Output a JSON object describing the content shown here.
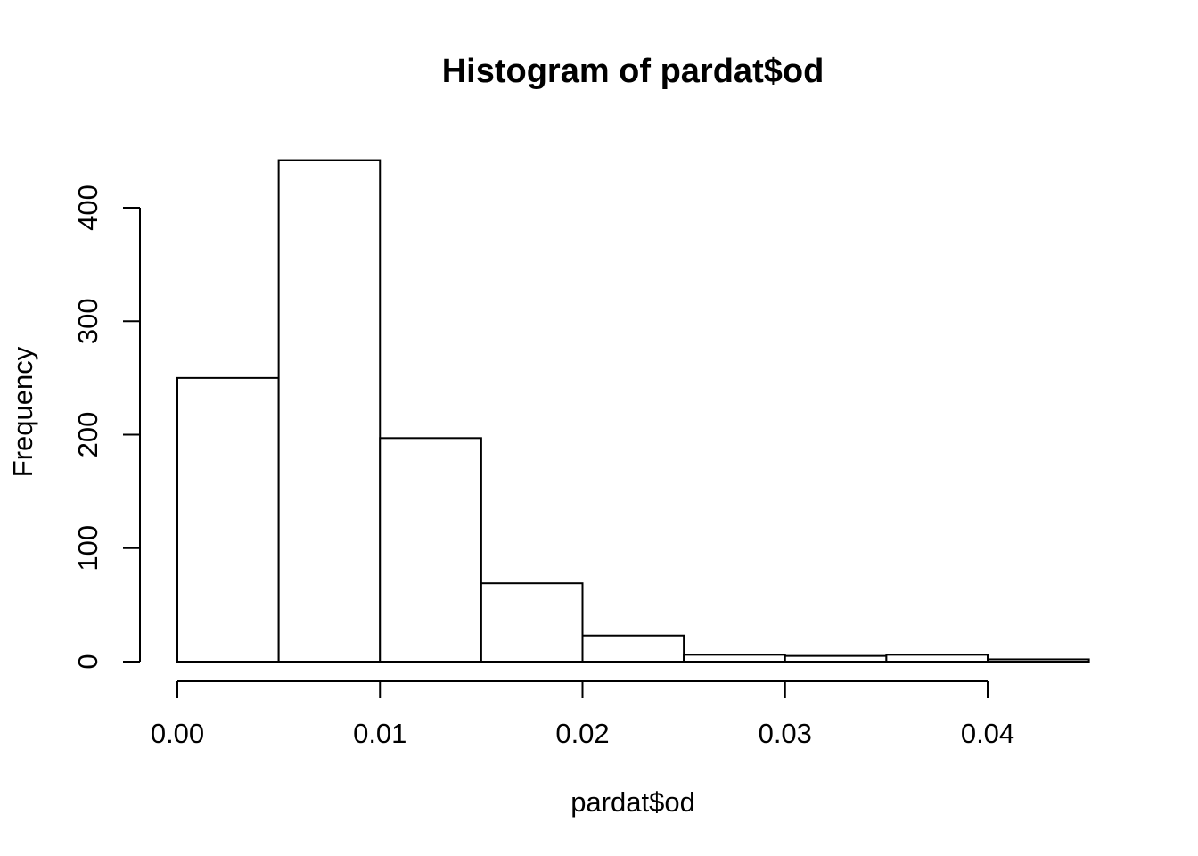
{
  "chart_data": {
    "type": "bar",
    "title": "Histogram of pardat$od",
    "xlabel": "pardat$od",
    "ylabel": "Frequency",
    "bins": [
      {
        "x0": 0.0,
        "x1": 0.005,
        "count": 250
      },
      {
        "x0": 0.005,
        "x1": 0.01,
        "count": 442
      },
      {
        "x0": 0.01,
        "x1": 0.015,
        "count": 197
      },
      {
        "x0": 0.015,
        "x1": 0.02,
        "count": 69
      },
      {
        "x0": 0.02,
        "x1": 0.025,
        "count": 23
      },
      {
        "x0": 0.025,
        "x1": 0.03,
        "count": 6
      },
      {
        "x0": 0.03,
        "x1": 0.035,
        "count": 5
      },
      {
        "x0": 0.035,
        "x1": 0.04,
        "count": 6
      },
      {
        "x0": 0.04,
        "x1": 0.045,
        "count": 2
      }
    ],
    "xlim": [
      0.0,
      0.045
    ],
    "ylim": [
      0,
      442
    ],
    "x_ticks": [
      {
        "value": 0.0,
        "label": "0.00"
      },
      {
        "value": 0.01,
        "label": "0.01"
      },
      {
        "value": 0.02,
        "label": "0.02"
      },
      {
        "value": 0.03,
        "label": "0.03"
      },
      {
        "value": 0.04,
        "label": "0.04"
      }
    ],
    "y_ticks": [
      {
        "value": 0,
        "label": "0"
      },
      {
        "value": 100,
        "label": "100"
      },
      {
        "value": 200,
        "label": "200"
      },
      {
        "value": 300,
        "label": "300"
      },
      {
        "value": 400,
        "label": "400"
      }
    ],
    "grid": false,
    "colors": {
      "bar_fill": "#ffffff",
      "bar_stroke": "#000000"
    }
  }
}
